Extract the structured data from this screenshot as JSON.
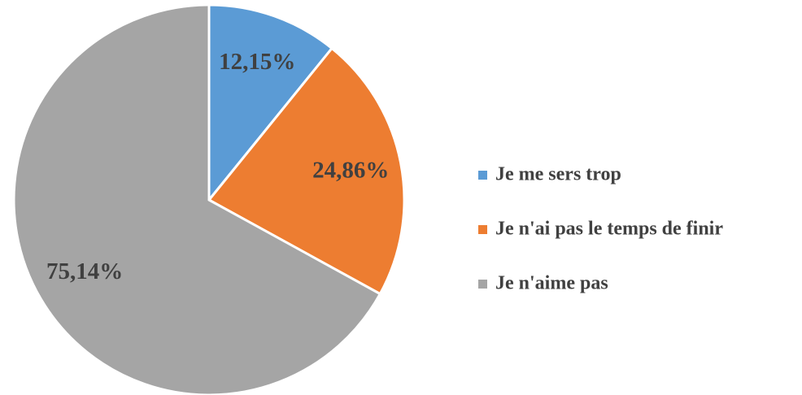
{
  "chart_data": {
    "type": "pie",
    "categories": [
      "Je me sers trop",
      "Je n'ai pas le temps de finir",
      "Je n'aime pas"
    ],
    "values": [
      12.15,
      24.86,
      75.14
    ],
    "value_labels": [
      "12,15%",
      "24,86%",
      "75,14%"
    ],
    "colors": [
      "#5b9bd5",
      "#ed7d31",
      "#a5a5a5"
    ],
    "legend": "right"
  }
}
